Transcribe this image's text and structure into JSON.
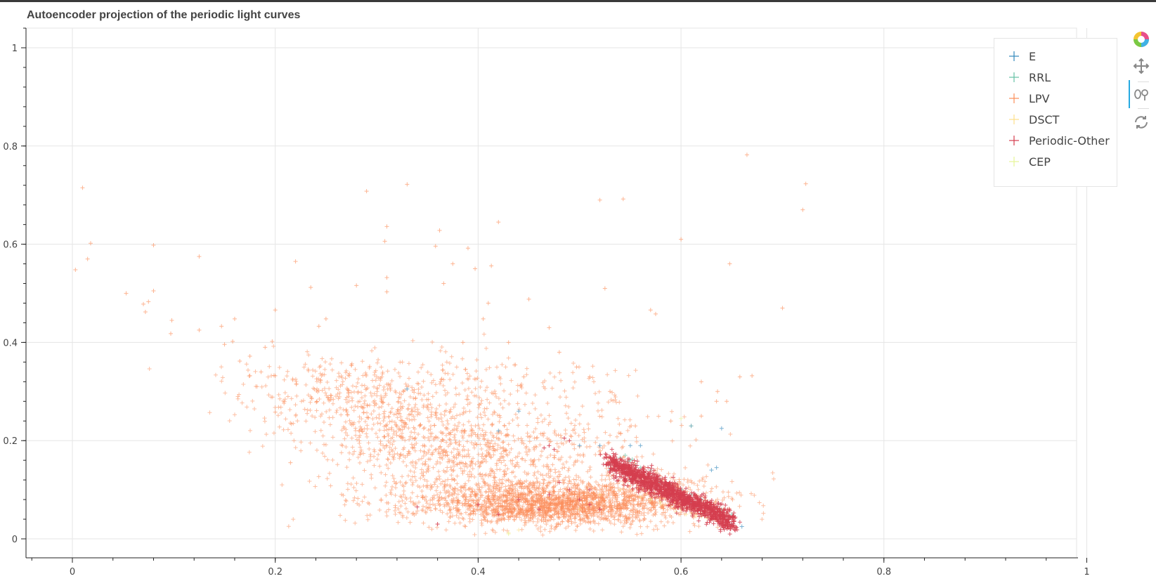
{
  "chart_data": {
    "type": "scatter",
    "title": "Autoencoder projection of the periodic light curves",
    "xlim": [
      -0.04,
      1.04
    ],
    "ylim": [
      -0.045,
      1.04
    ],
    "x_ticks": [
      "0",
      "0.2",
      "0.4",
      "0.6",
      "0.8",
      "1"
    ],
    "x_tick_values": [
      0,
      0.2,
      0.4,
      0.6,
      0.8,
      1.0
    ],
    "y_ticks": [
      "0",
      "0.2",
      "0.4",
      "0.6",
      "0.8",
      "1"
    ],
    "y_tick_values": [
      0,
      0.2,
      0.4,
      0.6,
      0.8,
      1.0
    ],
    "grid": true,
    "legend_position": "top-right",
    "marker": "cross",
    "series": [
      {
        "name": "E",
        "color": "#3288bd",
        "points": [
          [
            0.33,
            0.305
          ],
          [
            0.42,
            0.22
          ],
          [
            0.44,
            0.26
          ],
          [
            0.5,
            0.19
          ],
          [
            0.52,
            0.19
          ],
          [
            0.55,
            0.19
          ],
          [
            0.56,
            0.19
          ],
          [
            0.61,
            0.23
          ],
          [
            0.63,
            0.14
          ],
          [
            0.635,
            0.145
          ],
          [
            0.64,
            0.225
          ],
          [
            0.53,
            0.14
          ],
          [
            0.55,
            0.12
          ],
          [
            0.57,
            0.11
          ],
          [
            0.59,
            0.09
          ],
          [
            0.61,
            0.075
          ],
          [
            0.63,
            0.06
          ],
          [
            0.65,
            0.03
          ],
          [
            0.66,
            0.025
          ],
          [
            0.6,
            0.1
          ],
          [
            0.62,
            0.08
          ],
          [
            0.58,
            0.115
          ],
          [
            0.545,
            0.135
          ],
          [
            0.64,
            0.05
          ]
        ]
      },
      {
        "name": "RRL",
        "color": "#66c2a5",
        "points": [
          [
            0.535,
            0.16
          ],
          [
            0.54,
            0.165
          ],
          [
            0.545,
            0.17
          ],
          [
            0.55,
            0.16
          ],
          [
            0.555,
            0.15
          ],
          [
            0.53,
            0.15
          ],
          [
            0.56,
            0.145
          ],
          [
            0.57,
            0.14
          ],
          [
            0.58,
            0.12
          ],
          [
            0.59,
            0.11
          ],
          [
            0.6,
            0.1
          ],
          [
            0.61,
            0.09
          ],
          [
            0.62,
            0.08
          ],
          [
            0.63,
            0.07
          ],
          [
            0.64,
            0.06
          ],
          [
            0.65,
            0.05
          ],
          [
            0.548,
            0.158
          ],
          [
            0.552,
            0.162
          ]
        ]
      },
      {
        "name": "LPV",
        "color": "#fc8d59",
        "points": [
          [
            0.01,
            0.715
          ],
          [
            0.003,
            0.548
          ],
          [
            0.015,
            0.57
          ],
          [
            0.018,
            0.602
          ],
          [
            0.053,
            0.5
          ],
          [
            0.07,
            0.478
          ],
          [
            0.075,
            0.483
          ],
          [
            0.08,
            0.505
          ],
          [
            0.072,
            0.462
          ],
          [
            0.08,
            0.598
          ],
          [
            0.125,
            0.575
          ],
          [
            0.098,
            0.445
          ],
          [
            0.097,
            0.418
          ],
          [
            0.125,
            0.425
          ],
          [
            0.147,
            0.433
          ],
          [
            0.15,
            0.396
          ],
          [
            0.158,
            0.402
          ],
          [
            0.16,
            0.448
          ],
          [
            0.165,
            0.362
          ],
          [
            0.175,
            0.372
          ],
          [
            0.175,
            0.332
          ],
          [
            0.186,
            0.34
          ],
          [
            0.19,
            0.39
          ],
          [
            0.197,
            0.402
          ],
          [
            0.2,
            0.466
          ],
          [
            0.2,
            0.332
          ],
          [
            0.2,
            0.258
          ],
          [
            0.22,
            0.565
          ],
          [
            0.215,
            0.155
          ],
          [
            0.235,
            0.512
          ],
          [
            0.243,
            0.433
          ],
          [
            0.25,
            0.448
          ],
          [
            0.28,
            0.516
          ],
          [
            0.29,
            0.708
          ],
          [
            0.31,
            0.636
          ],
          [
            0.308,
            0.606
          ],
          [
            0.31,
            0.532
          ],
          [
            0.31,
            0.503
          ],
          [
            0.33,
            0.722
          ],
          [
            0.362,
            0.628
          ],
          [
            0.358,
            0.596
          ],
          [
            0.366,
            0.52
          ],
          [
            0.375,
            0.56
          ],
          [
            0.39,
            0.592
          ],
          [
            0.397,
            0.55
          ],
          [
            0.405,
            0.448
          ],
          [
            0.42,
            0.645
          ],
          [
            0.41,
            0.48
          ],
          [
            0.413,
            0.556
          ],
          [
            0.45,
            0.488
          ],
          [
            0.47,
            0.43
          ],
          [
            0.52,
            0.69
          ],
          [
            0.543,
            0.692
          ],
          [
            0.525,
            0.51
          ],
          [
            0.57,
            0.466
          ],
          [
            0.575,
            0.458
          ],
          [
            0.6,
            0.61
          ],
          [
            0.62,
            0.32
          ],
          [
            0.635,
            0.28
          ],
          [
            0.636,
            0.3
          ],
          [
            0.648,
            0.56
          ],
          [
            0.658,
            0.33
          ],
          [
            0.665,
            0.782
          ],
          [
            0.67,
            0.332
          ],
          [
            0.72,
            0.67
          ],
          [
            0.723,
            0.723
          ],
          [
            0.7,
            0.47
          ],
          [
            0.645,
            0.28
          ],
          [
            0.62,
            0.25
          ],
          [
            0.59,
            0.24
          ],
          [
            0.555,
            0.23
          ],
          [
            0.53,
            0.3
          ],
          [
            0.497,
            0.35
          ],
          [
            0.51,
            0.33
          ],
          [
            0.48,
            0.38
          ],
          [
            0.445,
            0.33
          ],
          [
            0.43,
            0.4
          ],
          [
            0.385,
            0.4
          ]
        ],
        "clusters": [
          {
            "cx": 0.25,
            "cy": 0.29,
            "sx": 0.05,
            "sy": 0.05,
            "n": 220
          },
          {
            "cx": 0.32,
            "cy": 0.22,
            "sx": 0.05,
            "sy": 0.06,
            "n": 420
          },
          {
            "cx": 0.4,
            "cy": 0.16,
            "sx": 0.06,
            "sy": 0.05,
            "n": 520
          },
          {
            "cx": 0.45,
            "cy": 0.07,
            "sx": 0.07,
            "sy": 0.03,
            "n": 1400
          },
          {
            "cx": 0.5,
            "cy": 0.06,
            "sx": 0.05,
            "sy": 0.025,
            "n": 700
          },
          {
            "cx": 0.58,
            "cy": 0.085,
            "sx": 0.04,
            "sy": 0.03,
            "n": 220
          },
          {
            "cx": 0.5,
            "cy": 0.2,
            "sx": 0.06,
            "sy": 0.07,
            "n": 160
          },
          {
            "cx": 0.38,
            "cy": 0.3,
            "sx": 0.06,
            "sy": 0.05,
            "n": 160
          }
        ]
      },
      {
        "name": "DSCT",
        "color": "#fee08b",
        "points": [
          [
            0.43,
            0.012
          ],
          [
            0.44,
            0.018
          ],
          [
            0.5,
            0.06
          ],
          [
            0.52,
            0.09
          ],
          [
            0.54,
            0.1
          ],
          [
            0.56,
            0.085
          ],
          [
            0.58,
            0.07
          ],
          [
            0.6,
            0.06
          ],
          [
            0.61,
            0.052
          ],
          [
            0.62,
            0.045
          ],
          [
            0.63,
            0.04
          ],
          [
            0.64,
            0.035
          ],
          [
            0.595,
            0.055
          ],
          [
            0.605,
            0.05
          ],
          [
            0.615,
            0.046
          ],
          [
            0.625,
            0.042
          ],
          [
            0.635,
            0.038
          ],
          [
            0.645,
            0.03
          ]
        ]
      },
      {
        "name": "Periodic-Other",
        "color": "#d53e4f",
        "points": [
          [
            0.465,
            0.185
          ],
          [
            0.47,
            0.19
          ],
          [
            0.49,
            0.2
          ],
          [
            0.485,
            0.205
          ],
          [
            0.475,
            0.182
          ],
          [
            0.36,
            0.03
          ],
          [
            0.34,
            0.065
          ],
          [
            0.4,
            0.07
          ],
          [
            0.42,
            0.05
          ],
          [
            0.44,
            0.08
          ],
          [
            0.46,
            0.06
          ],
          [
            0.47,
            0.09
          ],
          [
            0.48,
            0.115
          ],
          [
            0.49,
            0.1
          ],
          [
            0.5,
            0.08
          ],
          [
            0.51,
            0.07
          ],
          [
            0.52,
            0.06
          ],
          [
            0.51,
            0.1
          ]
        ],
        "band": {
          "x0": 0.53,
          "y0": 0.155,
          "x1": 0.65,
          "y1": 0.035,
          "width": 0.018,
          "n": 1300
        }
      },
      {
        "name": "CEP",
        "color": "#e6f598",
        "points": [
          [
            0.43,
            0.01
          ],
          [
            0.61,
            0.06
          ],
          [
            0.62,
            0.05
          ],
          [
            0.63,
            0.045
          ],
          [
            0.57,
            0.08
          ],
          [
            0.58,
            0.075
          ],
          [
            0.59,
            0.07
          ],
          [
            0.6,
            0.065
          ],
          [
            0.61,
            0.23
          ],
          [
            0.6,
            0.245
          ]
        ]
      }
    ]
  },
  "toolbar": {
    "logo": "bokeh-logo-icon",
    "tools": [
      "pan-icon",
      "wheel-zoom-icon",
      "reset-icon"
    ]
  }
}
